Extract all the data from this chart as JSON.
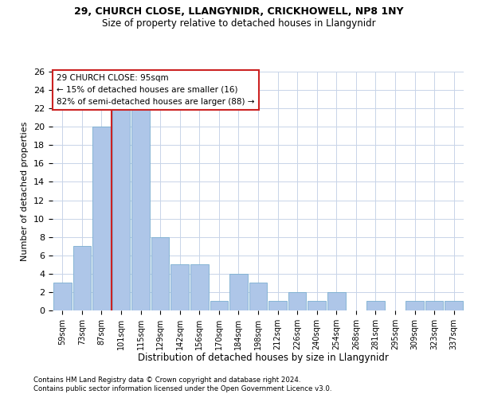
{
  "title1": "29, CHURCH CLOSE, LLANGYNIDR, CRICKHOWELL, NP8 1NY",
  "title2": "Size of property relative to detached houses in Llangynidr",
  "xlabel": "Distribution of detached houses by size in Llangynidr",
  "ylabel": "Number of detached properties",
  "categories": [
    "59sqm",
    "73sqm",
    "87sqm",
    "101sqm",
    "115sqm",
    "129sqm",
    "142sqm",
    "156sqm",
    "170sqm",
    "184sqm",
    "198sqm",
    "212sqm",
    "226sqm",
    "240sqm",
    "254sqm",
    "268sqm",
    "281sqm",
    "295sqm",
    "309sqm",
    "323sqm",
    "337sqm"
  ],
  "values": [
    3,
    7,
    20,
    22,
    22,
    8,
    5,
    5,
    1,
    4,
    3,
    1,
    2,
    1,
    2,
    0,
    1,
    0,
    1,
    1,
    1
  ],
  "bar_color": "#aec6e8",
  "bar_edge_color": "#7aaed0",
  "vline_color": "#cc2222",
  "annotation_text1": "29 CHURCH CLOSE: 95sqm",
  "annotation_text2": "← 15% of detached houses are smaller (16)",
  "annotation_text3": "82% of semi-detached houses are larger (88) →",
  "annotation_box_color": "#cc2222",
  "ylim": [
    0,
    26
  ],
  "yticks": [
    0,
    2,
    4,
    6,
    8,
    10,
    12,
    14,
    16,
    18,
    20,
    22,
    24,
    26
  ],
  "footer1": "Contains HM Land Registry data © Crown copyright and database right 2024.",
  "footer2": "Contains public sector information licensed under the Open Government Licence v3.0.",
  "bg_color": "#ffffff",
  "grid_color": "#c8d4e8"
}
